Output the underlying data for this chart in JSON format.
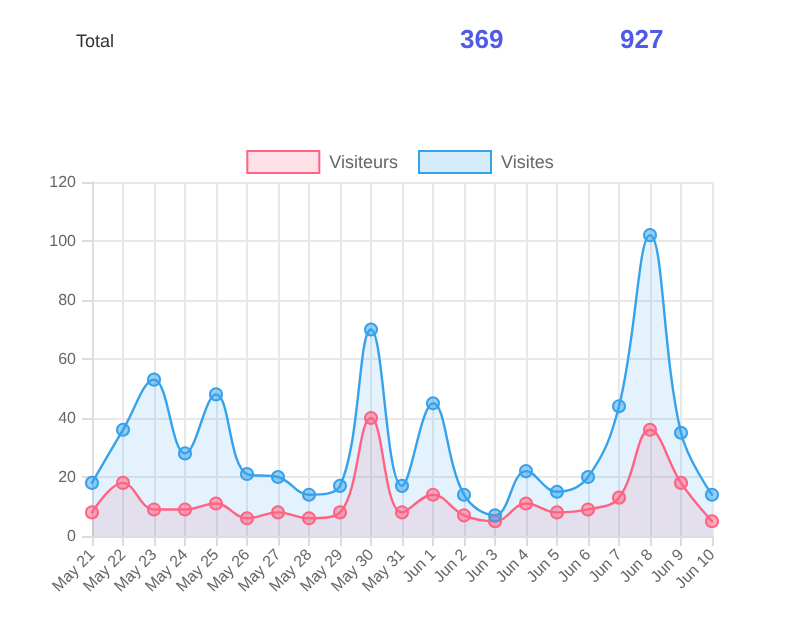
{
  "chart_data": {
    "type": "area",
    "annotations": [
      "Total",
      "369",
      "927"
    ],
    "categories": [
      "May 21",
      "May 22",
      "May 23",
      "May 24",
      "May 25",
      "May 26",
      "May 27",
      "May 28",
      "May 29",
      "May 30",
      "May 31",
      "Jun 1",
      "Jun 2",
      "Jun 3",
      "Jun 4",
      "Jun 5",
      "Jun 6",
      "Jun 7",
      "Jun 8",
      "Jun 9",
      "Jun 10"
    ],
    "series": [
      {
        "name": "Visiteurs",
        "color": "#ff6384",
        "values": [
          8,
          18,
          9,
          9,
          11,
          6,
          8,
          6,
          8,
          40,
          8,
          14,
          7,
          5,
          11,
          8,
          9,
          13,
          36,
          18,
          5
        ]
      },
      {
        "name": "Visites",
        "color": "#36a2eb",
        "values": [
          18,
          36,
          53,
          28,
          48,
          21,
          20,
          14,
          17,
          70,
          17,
          45,
          14,
          7,
          22,
          15,
          20,
          44,
          102,
          35,
          14
        ]
      }
    ],
    "ylim": [
      0,
      120
    ],
    "yticks": [
      0,
      20,
      40,
      60,
      80,
      100,
      120
    ],
    "grid": true,
    "legend": "top",
    "marker": "circle",
    "line_style": "solid"
  }
}
